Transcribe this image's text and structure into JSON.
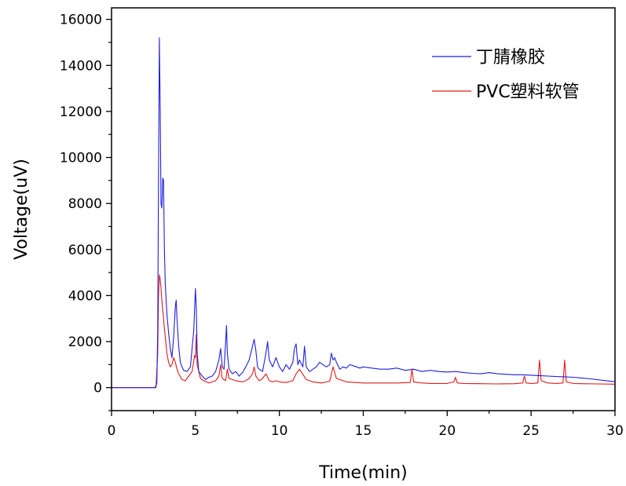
{
  "chart_data": {
    "type": "line",
    "title": "",
    "xlabel": "Time(min)",
    "ylabel": "Voltage(uV)",
    "xlim": [
      0,
      30
    ],
    "ylim": [
      -1000,
      16500
    ],
    "xticks": [
      0,
      5,
      10,
      15,
      20,
      25,
      30
    ],
    "xtick_labels": [
      "0",
      "5",
      "10",
      "15",
      "20",
      "25",
      "30"
    ],
    "yticks": [
      0,
      2000,
      4000,
      6000,
      8000,
      10000,
      12000,
      14000,
      16000
    ],
    "ytick_labels": [
      "0",
      "2000",
      "4000",
      "6000",
      "8000",
      "10000",
      "12000",
      "14000",
      "16000"
    ],
    "grid": false,
    "legend_position": "top-right",
    "series": [
      {
        "name": "丁腈橡胶",
        "color": "#1f1fdd",
        "x": [
          0,
          2.6,
          2.7,
          2.75,
          2.8,
          2.85,
          2.9,
          2.95,
          3.0,
          3.05,
          3.1,
          3.15,
          3.2,
          3.3,
          3.4,
          3.5,
          3.6,
          3.7,
          3.8,
          3.85,
          3.9,
          4.0,
          4.1,
          4.2,
          4.3,
          4.5,
          4.7,
          4.9,
          5.0,
          5.05,
          5.1,
          5.2,
          5.4,
          5.6,
          5.8,
          6.0,
          6.2,
          6.4,
          6.5,
          6.6,
          6.7,
          6.8,
          6.85,
          6.9,
          7.0,
          7.2,
          7.4,
          7.6,
          7.8,
          8.0,
          8.2,
          8.4,
          8.5,
          8.6,
          8.7,
          8.8,
          9.0,
          9.2,
          9.3,
          9.4,
          9.6,
          9.8,
          10.0,
          10.2,
          10.4,
          10.6,
          10.8,
          10.9,
          11.0,
          11.1,
          11.2,
          11.4,
          11.5,
          11.6,
          11.8,
          12.0,
          12.2,
          12.4,
          12.6,
          12.8,
          13.0,
          13.1,
          13.2,
          13.3,
          13.4,
          13.6,
          13.8,
          14.0,
          14.2,
          14.4,
          14.6,
          14.8,
          15.0,
          15.5,
          16.0,
          16.5,
          17.0,
          17.5,
          18.0,
          18.5,
          19.0,
          19.5,
          20.0,
          20.5,
          21.0,
          21.5,
          22.0,
          22.5,
          23.0,
          23.5,
          24.0,
          24.5,
          25.0,
          25.5,
          26.0,
          26.5,
          27.0,
          27.5,
          28.0,
          28.5,
          29.0,
          29.5,
          30.0
        ],
        "y": [
          0,
          0,
          200,
          2500,
          9000,
          15200,
          12000,
          8000,
          7800,
          9100,
          9000,
          6000,
          4500,
          3200,
          2400,
          1700,
          1300,
          2200,
          3500,
          3800,
          3000,
          1800,
          1100,
          900,
          750,
          700,
          900,
          2500,
          4300,
          3500,
          1500,
          700,
          500,
          350,
          450,
          500,
          700,
          1200,
          1700,
          900,
          800,
          2000,
          2700,
          1500,
          800,
          600,
          700,
          500,
          650,
          900,
          1200,
          1800,
          2100,
          1600,
          900,
          800,
          700,
          1500,
          2000,
          1200,
          900,
          1300,
          900,
          700,
          1000,
          800,
          1100,
          1700,
          1900,
          1000,
          1200,
          900,
          1800,
          900,
          700,
          800,
          900,
          1100,
          1000,
          900,
          1000,
          1500,
          1200,
          1300,
          1100,
          800,
          900,
          850,
          1000,
          950,
          900,
          850,
          900,
          850,
          800,
          800,
          850,
          750,
          800,
          700,
          750,
          700,
          680,
          700,
          650,
          620,
          600,
          650,
          600,
          580,
          560,
          560,
          540,
          520,
          500,
          480,
          470,
          450,
          420,
          380,
          340,
          300,
          260
        ]
      },
      {
        "name": "PVC塑料软管",
        "color": "#e01b1b",
        "x": [
          0,
          2.65,
          2.75,
          2.8,
          2.85,
          2.9,
          2.95,
          3.0,
          3.1,
          3.2,
          3.3,
          3.4,
          3.5,
          3.6,
          3.7,
          3.8,
          3.9,
          4.0,
          4.2,
          4.4,
          4.6,
          4.8,
          4.95,
          5.0,
          5.05,
          5.1,
          5.3,
          5.5,
          5.8,
          6.0,
          6.2,
          6.4,
          6.5,
          6.6,
          6.8,
          6.9,
          7.0,
          7.4,
          7.8,
          8.0,
          8.2,
          8.4,
          8.5,
          8.6,
          8.8,
          9.0,
          9.2,
          9.4,
          9.6,
          9.8,
          10.0,
          10.4,
          10.8,
          11.0,
          11.2,
          11.6,
          12.0,
          12.5,
          13.0,
          13.2,
          13.4,
          14.0,
          15.0,
          16.0,
          17.0,
          17.8,
          17.9,
          18.0,
          18.5,
          19.0,
          20.0,
          20.4,
          20.5,
          20.6,
          21.0,
          22.0,
          23.0,
          24.0,
          24.5,
          24.6,
          24.7,
          25.0,
          25.4,
          25.5,
          25.6,
          26.0,
          26.5,
          26.9,
          27.0,
          27.1,
          27.5,
          28.0,
          29.0,
          30.0
        ],
        "y": [
          0,
          0,
          1500,
          4000,
          4900,
          4700,
          4300,
          3800,
          3000,
          2200,
          1500,
          1100,
          900,
          1000,
          1300,
          1100,
          800,
          600,
          350,
          300,
          500,
          700,
          1400,
          1300,
          2300,
          1000,
          400,
          300,
          200,
          250,
          300,
          500,
          1000,
          400,
          300,
          800,
          400,
          300,
          250,
          300,
          400,
          600,
          900,
          500,
          300,
          400,
          600,
          300,
          250,
          300,
          250,
          220,
          300,
          600,
          800,
          350,
          250,
          200,
          280,
          900,
          400,
          250,
          200,
          200,
          200,
          220,
          800,
          250,
          200,
          180,
          180,
          250,
          450,
          200,
          180,
          170,
          160,
          170,
          200,
          500,
          200,
          180,
          200,
          1200,
          300,
          200,
          180,
          200,
          1200,
          250,
          180,
          170,
          160,
          150
        ]
      }
    ]
  }
}
